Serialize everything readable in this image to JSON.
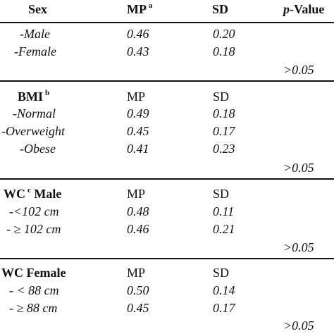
{
  "header": {
    "sex": "Sex",
    "mp": "MP",
    "mp_sup": "a",
    "sd": "SD",
    "p_italic": "p",
    "p_rest": "-Value"
  },
  "sex": {
    "rows": [
      {
        "label": "-Male",
        "mp": "0.46",
        "sd": "0.20"
      },
      {
        "label": "-Female",
        "mp": "0.43",
        "sd": "0.18"
      }
    ],
    "p": ">0.05"
  },
  "bmi": {
    "title": "BMI",
    "sup": "b",
    "mp": "MP",
    "sd": "SD",
    "rows": [
      {
        "label": "-Normal",
        "mp": "0.49",
        "sd": "0.18"
      },
      {
        "label": "-Overweight",
        "mp": "0.45",
        "sd": "0.17"
      },
      {
        "label": "-Obese",
        "mp": "0.41",
        "sd": "0.23"
      }
    ],
    "p": ">0.05"
  },
  "wc_male": {
    "title_a": "WC",
    "sup": "c",
    "title_b": "Male",
    "mp": "MP",
    "sd": "SD",
    "rows": [
      {
        "label": "-<102 cm",
        "mp": "0.48",
        "sd": "0.11"
      },
      {
        "label": "- ≥ 102 cm",
        "mp": "0.46",
        "sd": "0.21"
      }
    ],
    "p": ">0.05"
  },
  "wc_female": {
    "title": "WC Female",
    "mp": "MP",
    "sd": "SD",
    "rows": [
      {
        "label": "- < 88 cm",
        "mp": "0.50",
        "sd": "0.14"
      },
      {
        "label": "- ≥ 88 cm",
        "mp": "0.45",
        "sd": "0.17"
      }
    ],
    "p": ">0.05"
  }
}
